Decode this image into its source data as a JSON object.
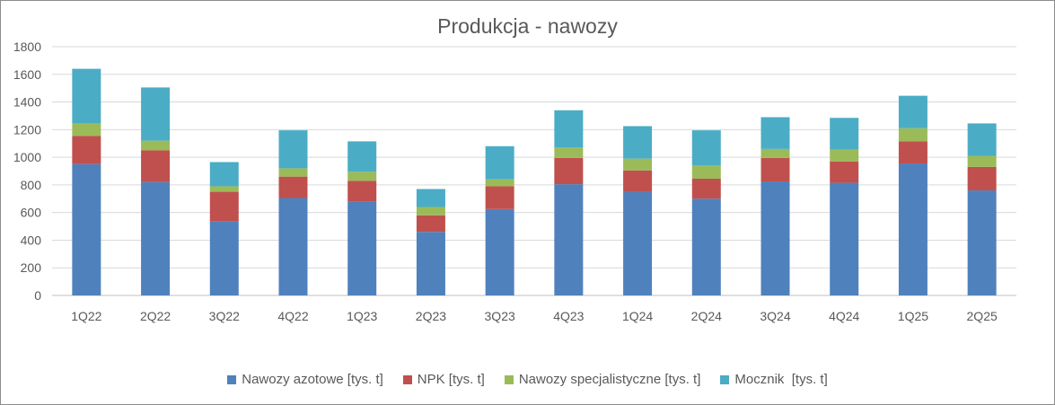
{
  "chart_data": {
    "type": "bar",
    "stacked": true,
    "title": "Produkcja - nawozy",
    "categories": [
      "1Q22",
      "2Q22",
      "3Q22",
      "4Q22",
      "1Q23",
      "2Q23",
      "3Q23",
      "4Q23",
      "1Q24",
      "2Q24",
      "3Q24",
      "4Q24",
      "1Q25",
      "2Q25"
    ],
    "series": [
      {
        "name": "Nawozy azotowe [tys. t]",
        "color": "#4f81bd",
        "values": [
          950,
          820,
          535,
          705,
          680,
          460,
          625,
          805,
          750,
          700,
          825,
          815,
          955,
          760
        ]
      },
      {
        "name": "NPK [tys. t]",
        "color": "#c0504d",
        "values": [
          205,
          230,
          215,
          155,
          150,
          120,
          165,
          190,
          155,
          145,
          170,
          155,
          160,
          170
        ]
      },
      {
        "name": "Nawozy specjalistyczne [tys. t]",
        "color": "#9bbb59",
        "values": [
          90,
          70,
          40,
          60,
          65,
          60,
          50,
          75,
          85,
          95,
          65,
          85,
          95,
          80
        ]
      },
      {
        "name": "Mocznik  [tys. t]",
        "color": "#4bacc6",
        "values": [
          395,
          385,
          175,
          275,
          220,
          130,
          240,
          270,
          235,
          255,
          230,
          230,
          235,
          235
        ]
      }
    ],
    "ylim": [
      0,
      1800
    ],
    "yticks": [
      0,
      200,
      400,
      600,
      800,
      1000,
      1200,
      1400,
      1600,
      1800
    ],
    "grid": true,
    "legend_position": "bottom"
  }
}
